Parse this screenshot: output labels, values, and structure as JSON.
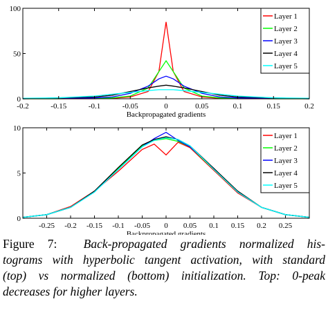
{
  "chart_data": [
    {
      "type": "line",
      "xlabel": "Backpropagated gradients",
      "x": [
        -0.2,
        -0.15,
        -0.1,
        -0.075,
        -0.05,
        -0.025,
        -0.01,
        0,
        0.01,
        0.025,
        0.05,
        0.075,
        0.1,
        0.15,
        0.2
      ],
      "series": [
        {
          "name": "Layer 1",
          "color": "#ff0000",
          "values": [
            0,
            0,
            0,
            0.5,
            2,
            8,
            30,
            85,
            30,
            8,
            2,
            0.5,
            0,
            0,
            0
          ]
        },
        {
          "name": "Layer 2",
          "color": "#00ff00",
          "values": [
            0,
            0,
            0.5,
            1,
            3,
            12,
            30,
            42,
            30,
            12,
            3,
            1,
            0.5,
            0,
            0
          ]
        },
        {
          "name": "Layer 3",
          "color": "#0000ff",
          "values": [
            0,
            0.5,
            1,
            2,
            6,
            14,
            22,
            25,
            22,
            14,
            6,
            2,
            1,
            0.5,
            0
          ]
        },
        {
          "name": "Layer 4",
          "color": "#000000",
          "values": [
            0,
            1,
            2,
            4,
            8,
            12,
            14,
            15,
            14,
            12,
            8,
            4,
            2,
            1,
            0
          ]
        },
        {
          "name": "Layer 5",
          "color": "#00ffff",
          "values": [
            0.5,
            1,
            3,
            5,
            7,
            9,
            10,
            10,
            10,
            9,
            7,
            5,
            3,
            1,
            0.5
          ]
        }
      ],
      "xlim": [
        -0.2,
        0.2
      ],
      "xticks": [
        -0.2,
        -0.15,
        -0.1,
        -0.05,
        0,
        0.05,
        0.1,
        0.15,
        0.2
      ],
      "ylim": [
        0,
        100
      ],
      "yticks": [
        0,
        50,
        100
      ],
      "grid": false,
      "legend": "upper right"
    },
    {
      "type": "line",
      "xlabel": "Backpropagated gradients",
      "x": [
        -0.3,
        -0.25,
        -0.2,
        -0.15,
        -0.1,
        -0.05,
        -0.025,
        0,
        0.025,
        0.05,
        0.1,
        0.15,
        0.2,
        0.25,
        0.3
      ],
      "series": [
        {
          "name": "Layer 1",
          "color": "#ff0000",
          "values": [
            0.1,
            0.4,
            1.3,
            3,
            5.2,
            7.6,
            8.2,
            7,
            8.4,
            7.8,
            5.3,
            2.8,
            1.2,
            0.4,
            0.1
          ]
        },
        {
          "name": "Layer 2",
          "color": "#00ff00",
          "values": [
            0.1,
            0.4,
            1.2,
            2.9,
            5.5,
            8,
            8.6,
            8.8,
            8.5,
            7.9,
            5.4,
            2.9,
            1.2,
            0.4,
            0.1
          ]
        },
        {
          "name": "Layer 3",
          "color": "#0000ff",
          "values": [
            0.1,
            0.4,
            1.2,
            2.9,
            5.4,
            7.9,
            8.8,
            9.5,
            8.6,
            7.9,
            5.5,
            2.9,
            1.2,
            0.4,
            0.1
          ]
        },
        {
          "name": "Layer 4",
          "color": "#000000",
          "values": [
            0.1,
            0.4,
            1.2,
            3,
            5.6,
            8.1,
            8.7,
            9,
            8.7,
            8,
            5.5,
            3,
            1.2,
            0.4,
            0.1
          ]
        },
        {
          "name": "Layer 5",
          "color": "#00ffff",
          "values": [
            0.1,
            0.4,
            1.2,
            2.9,
            5.4,
            7.9,
            8.6,
            8.9,
            8.7,
            8,
            5.4,
            2.9,
            1.2,
            0.4,
            0.1
          ]
        }
      ],
      "xlim": [
        -0.3,
        0.3
      ],
      "xticks": [
        -0.25,
        -0.2,
        -0.15,
        -0.1,
        -0.05,
        0,
        0.05,
        0.1,
        0.15,
        0.2,
        0.25
      ],
      "ylim": [
        0,
        10
      ],
      "yticks": [
        0,
        5,
        10
      ],
      "grid": false,
      "legend": "upper right"
    }
  ],
  "caption": {
    "label": "Figure 7:",
    "lines": [
      "Back-propagated gradients normalized his-",
      "tograms with hyperbolic tangent activation, with standard",
      "(top) vs normalized (bottom) initialization.  Top: 0-peak",
      "decreases for higher layers."
    ]
  }
}
